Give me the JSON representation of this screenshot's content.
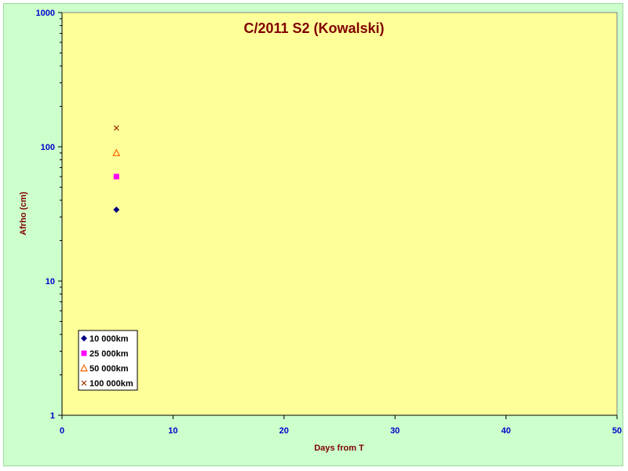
{
  "chart_data": {
    "type": "scatter",
    "title": "C/2011 S2 (Kowalski)",
    "xlabel": "Days from T",
    "ylabel": "Afrho (cm)",
    "xlim": [
      0,
      50
    ],
    "ylim": [
      1,
      1000
    ],
    "yscale": "log",
    "x_ticks": [
      "0",
      "10",
      "20",
      "30",
      "40",
      "50"
    ],
    "y_ticks": [
      "1",
      "10",
      "100",
      "1000"
    ],
    "grid": false,
    "legend_position": "bottom-left",
    "series": [
      {
        "name": "10 000km",
        "marker": "diamond",
        "color": "#000080",
        "points": [
          {
            "x": 4.9,
            "y": 34
          }
        ]
      },
      {
        "name": "25 000km",
        "marker": "square",
        "color": "#ff00ff",
        "points": [
          {
            "x": 4.9,
            "y": 60
          }
        ]
      },
      {
        "name": "50 000km",
        "marker": "triangle",
        "color": "#ff6600",
        "points": [
          {
            "x": 4.9,
            "y": 90
          }
        ]
      },
      {
        "name": "100 000km",
        "marker": "x",
        "color": "#993300",
        "points": [
          {
            "x": 4.9,
            "y": 138
          }
        ]
      }
    ],
    "colors": {
      "plot_background": "#ffff99",
      "chart_background": "#ccffcc",
      "tick_label": "#0000cc",
      "title": "#800000"
    }
  }
}
